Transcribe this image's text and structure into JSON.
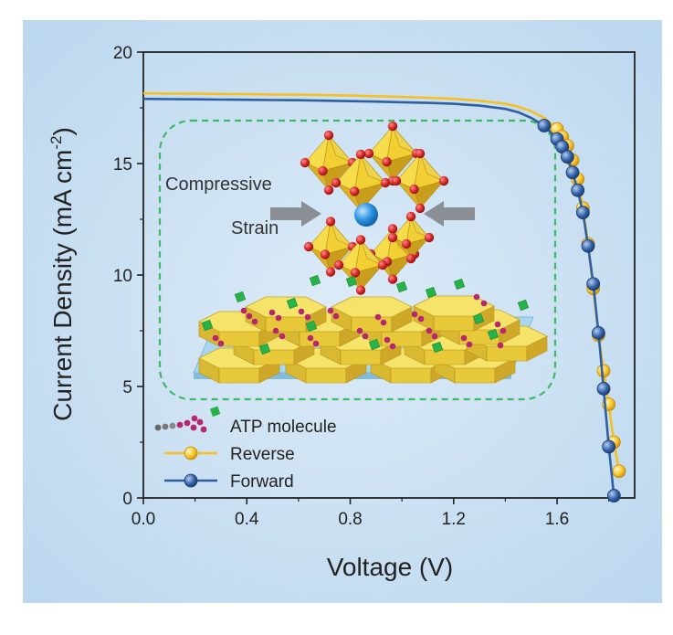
{
  "chart_data": {
    "type": "line",
    "xlabel": "Voltage (V)",
    "ylabel_main": "Current Density (mA cm",
    "ylabel_sup": "-2",
    "ylabel_close": ")",
    "xlim": [
      0.0,
      1.9
    ],
    "ylim": [
      0,
      20
    ],
    "x_ticks": [
      "0.0",
      "0.4",
      "0.8",
      "1.2",
      "1.6"
    ],
    "x_tick_values": [
      0.0,
      0.4,
      0.8,
      1.2,
      1.6
    ],
    "y_ticks": [
      "0",
      "5",
      "10",
      "15",
      "20"
    ],
    "y_tick_values": [
      0,
      5,
      10,
      15,
      20
    ],
    "grid": false,
    "legend_position": "bottom-left",
    "series": [
      {
        "name": "Reverse",
        "color": "#f5c022",
        "x": [
          0.0,
          0.1,
          0.2,
          0.3,
          0.4,
          0.5,
          0.6,
          0.7,
          0.8,
          0.9,
          1.0,
          1.1,
          1.2,
          1.3,
          1.4,
          1.45,
          1.5,
          1.55,
          1.6,
          1.62,
          1.64,
          1.66,
          1.68,
          1.7,
          1.72,
          1.74,
          1.76,
          1.78,
          1.8,
          1.82,
          1.84
        ],
        "y": [
          18.15,
          18.14,
          18.13,
          18.12,
          18.11,
          18.1,
          18.09,
          18.07,
          18.05,
          18.02,
          17.99,
          17.95,
          17.9,
          17.82,
          17.68,
          17.55,
          17.35,
          17.05,
          16.55,
          16.2,
          15.8,
          15.15,
          14.3,
          13.0,
          11.4,
          9.4,
          7.3,
          5.7,
          4.2,
          2.5,
          1.2
        ]
      },
      {
        "name": "Forward",
        "color": "#2f5fa1",
        "x": [
          0.0,
          0.1,
          0.2,
          0.3,
          0.4,
          0.5,
          0.6,
          0.7,
          0.8,
          0.9,
          1.0,
          1.1,
          1.2,
          1.3,
          1.4,
          1.45,
          1.5,
          1.55,
          1.6,
          1.62,
          1.64,
          1.66,
          1.68,
          1.7,
          1.72,
          1.74,
          1.76,
          1.78,
          1.8,
          1.82
        ],
        "y": [
          17.9,
          17.89,
          17.88,
          17.87,
          17.86,
          17.85,
          17.84,
          17.82,
          17.8,
          17.78,
          17.75,
          17.72,
          17.68,
          17.6,
          17.45,
          17.3,
          17.05,
          16.7,
          16.1,
          15.75,
          15.3,
          14.6,
          13.8,
          12.8,
          11.3,
          9.6,
          7.4,
          4.9,
          2.3,
          0.1
        ]
      }
    ],
    "legend": [
      {
        "label": "ATP molecule",
        "kind": "molecule"
      },
      {
        "label": "Reverse",
        "kind": "line",
        "series": "Reverse"
      },
      {
        "label": "Forward",
        "kind": "line",
        "series": "Forward"
      }
    ],
    "annotations": {
      "compressive": "Compressive",
      "strain": "Strain"
    }
  },
  "colors": {
    "background": "#cbe2f4",
    "axis": "#222222",
    "dashed_box": "#3fb86a",
    "octahedron": "#f2d23d",
    "oxygen": "#cc2a2a",
    "cation": "#2a8fe0",
    "hexagon": "#f2de5a",
    "substrate": "#9fd2ec",
    "molecule_green": "#27b34a",
    "molecule_magenta": "#b8266f",
    "arrow": "#8a8f96"
  }
}
